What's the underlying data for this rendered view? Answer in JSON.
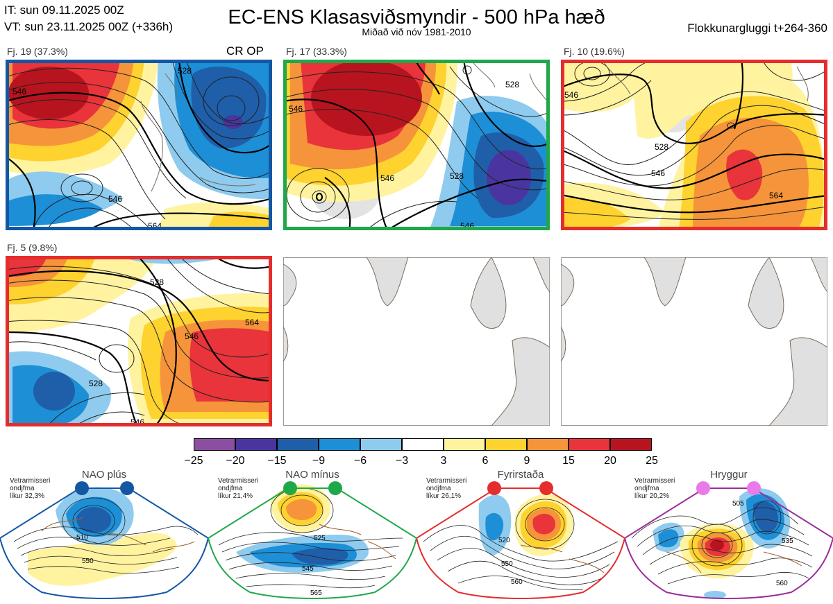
{
  "header": {
    "initial_time": "IT: sun 09.11.2025 00Z",
    "valid_time": "VT: sun 23.11.2025 00Z  (+336h)",
    "title": "EC-ENS Klasasviðsmyndir - 500 hPa hæð",
    "subtitle": "Miðað við nóv 1981-2010",
    "window": "Flokkunargluggi t+264-360"
  },
  "clusters": [
    {
      "label": "Fj. 19 (37.3%)",
      "members": 19,
      "percent": 37.3,
      "tag": "CR OP",
      "border_color": "#1357a4",
      "contours": [
        "546",
        "528",
        "546",
        "564"
      ]
    },
    {
      "label": "Fj. 17 (33.3%)",
      "members": 17,
      "percent": 33.3,
      "tag": "",
      "border_color": "#1fa84a",
      "contours": [
        "546",
        "528",
        "546",
        "528",
        "546"
      ]
    },
    {
      "label": "Fj. 10 (19.6%)",
      "members": 10,
      "percent": 19.6,
      "tag": "",
      "border_color": "#e52d2d",
      "contours": [
        "546",
        "528",
        "546",
        "564"
      ]
    },
    {
      "label": "Fj. 5 (9.8%)",
      "members": 5,
      "percent": 9.8,
      "tag": "",
      "border_color": "#e52d2d",
      "contours": [
        "528",
        "546",
        "564",
        "528",
        "546"
      ]
    }
  ],
  "colorbar": {
    "ticks": [
      "−25",
      "−20",
      "−15",
      "−9",
      "−6",
      "−3",
      "3",
      "6",
      "9",
      "15",
      "20",
      "25"
    ],
    "colors": [
      "#8c4ea0",
      "#4a35a0",
      "#1f5ea8",
      "#1d8fd6",
      "#8ecbee",
      "#ffffff",
      "#fff3a0",
      "#fed22f",
      "#f5943a",
      "#e8343a",
      "#b7141f"
    ]
  },
  "regimes": [
    {
      "name": "NAO plús",
      "season": "Vetrarmisseri",
      "pattern": "ondjfma",
      "prob": "líkur 32,3%",
      "color": "#1357a4",
      "labels": [
        "510",
        "550"
      ]
    },
    {
      "name": "NAO mínus",
      "season": "Vetrarmisseri",
      "pattern": "ondjfma",
      "prob": "líkur 21,4%",
      "color": "#1fa84a",
      "labels": [
        "525",
        "545",
        "565"
      ]
    },
    {
      "name": "Fyrirstaða",
      "season": "Vetrarmisseri",
      "pattern": "ondjfma",
      "prob": "líkur 26,1%",
      "color": "#e52d2d",
      "labels": [
        "520",
        "550",
        "560"
      ]
    },
    {
      "name": "Hryggur",
      "season": "Vetrarmisseri",
      "pattern": "ondjfma",
      "prob": "líkur 20,2%",
      "color": "#9b2d9b",
      "labels": [
        "505",
        "535",
        "560"
      ]
    }
  ]
}
